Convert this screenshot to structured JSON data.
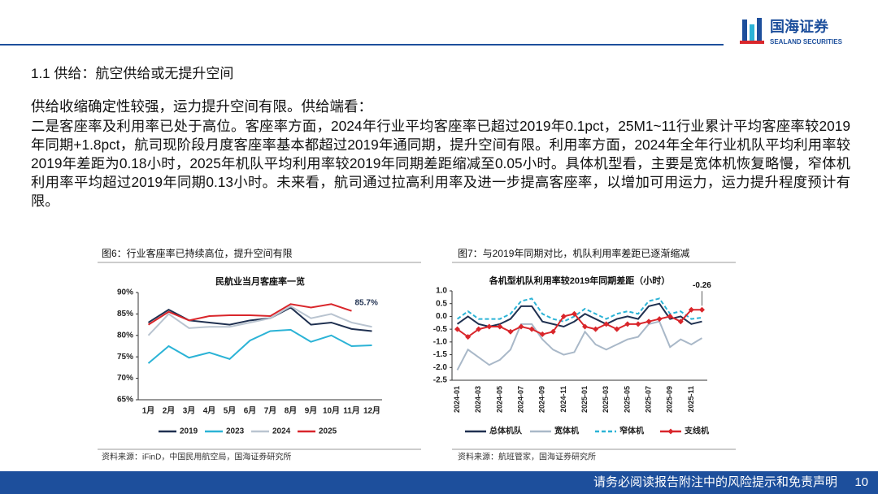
{
  "header": {
    "logo_text": "国海证券",
    "logo_subtext": "SEALAND SECURITIES"
  },
  "section_title": "1.1 供给：航空供给或无提升空间",
  "lead": "供给收缩确定性较强，运力提升空间有限。供给端看：",
  "paragraph": "二是客座率及利用率已处于高位。客座率方面，2024年行业平均客座率已超过2019年0.1pct，25M1~11行业累计平均客座率较2019年同期+1.8pct，航司现阶段月度客座率基本都超过2019年通同期，提升空间有限。利用率方面，2024年全年行业机队平均利用率较2019年差距为0.18小时，2025年机队平均利用率较2019年同期差距缩减至0.05小时。具体机型看，主要是宽体机恢复略慢，窄体机利用率平均超过2019年同期0.13小时。未来看，航司通过拉高利用率及进一步提高客座率，以增加可用运力，运力提升程度预计有限。",
  "footer": {
    "disclaimer": "请务必阅读报告附注中的风险提示和免责声明",
    "page_number": "10"
  },
  "chart_data": [
    {
      "type": "line",
      "caption": "图6：行业客座率已持续高位，提升空间有限",
      "title": "民航业当月客座率一览",
      "source": "资料来源：iFinD，中国民用航空局，国海证券研究所",
      "categories": [
        "1月",
        "2月",
        "3月",
        "4月",
        "5月",
        "6月",
        "7月",
        "8月",
        "9月",
        "10月",
        "11月",
        "12月"
      ],
      "ylim": [
        65,
        90
      ],
      "yticks": [
        {
          "value": 65,
          "label": "65%"
        },
        {
          "value": 70,
          "label": "70%"
        },
        {
          "value": 75,
          "label": "75%"
        },
        {
          "value": 80,
          "label": "80%"
        },
        {
          "value": 85,
          "label": "85%"
        },
        {
          "value": 90,
          "label": "90%"
        }
      ],
      "series": [
        {
          "name": "2019",
          "color": "#1f3050",
          "values": [
            83,
            86,
            83.5,
            83,
            82.5,
            83.5,
            84,
            86.5,
            82.5,
            83,
            81.5,
            81
          ]
        },
        {
          "name": "2023",
          "color": "#2bb3d6",
          "values": [
            73.5,
            77.5,
            74.8,
            76,
            74.5,
            78.8,
            81,
            81.3,
            78.5,
            80,
            77.5,
            77.7
          ]
        },
        {
          "name": "2024",
          "color": "#b9c4d0",
          "values": [
            80,
            85,
            81.7,
            82,
            82,
            83,
            84,
            86.8,
            84,
            85,
            83,
            82
          ]
        },
        {
          "name": "2025",
          "color": "#d9262b",
          "values": [
            82.5,
            85.5,
            83.5,
            84.5,
            84.7,
            84.7,
            84.5,
            87.3,
            86.5,
            87.3,
            85.7,
            null
          ],
          "value_labels": [
            null,
            null,
            null,
            null,
            null,
            null,
            null,
            null,
            null,
            null,
            "85.7%",
            null
          ]
        }
      ]
    },
    {
      "type": "line",
      "caption": "图7：与2019年同期对比，机队利用率差距已逐渐缩减",
      "title": "各机型机队利用率较2019年同期差距（小时）",
      "source": "资料来源：航班管家，国海证券研究所",
      "annotation": "-0.26",
      "categories": [
        "2024-01",
        null,
        "2024-03",
        null,
        "2024-05",
        null,
        "2024-07",
        null,
        "2024-09",
        null,
        "2024-11",
        null,
        "2025-01",
        null,
        "2025-03",
        null,
        "2025-05",
        null,
        "2025-07",
        null,
        "2025-09",
        null,
        "2025-11",
        null
      ],
      "ylim": [
        -2.5,
        1.0
      ],
      "yticks": [
        -2.5,
        {
          "value": -2,
          "label": "-2.0"
        },
        -1.5,
        {
          "value": -1,
          "label": "-1.0"
        },
        -0.5,
        {
          "value": 0,
          "label": "0.0"
        },
        0.5,
        {
          "value": 1,
          "label": "1.0"
        }
      ],
      "series": [
        {
          "name": "总体机队",
          "color": "#1f3050",
          "values": [
            -0.3,
            0.0,
            -0.3,
            -0.4,
            -0.3,
            -0.1,
            0.4,
            0.4,
            -0.2,
            -0.3,
            -0.4,
            -0.2,
            0.1,
            -0.1,
            -0.3,
            -0.1,
            0.0,
            -0.1,
            0.4,
            0.5,
            -0.1,
            0.0,
            -0.3,
            -0.2
          ]
        },
        {
          "name": "宽体机",
          "color": "#a9b8c8",
          "values": [
            -2.1,
            -1.3,
            -1.6,
            -1.9,
            -1.7,
            -1.3,
            -0.3,
            -0.3,
            -0.9,
            -1.3,
            -1.5,
            -1.4,
            -0.6,
            -1.1,
            -1.3,
            -1.1,
            -0.9,
            -0.8,
            -0.3,
            -0.2,
            -1.2,
            -0.9,
            -1.1,
            -0.85
          ]
        },
        {
          "name": "窄体机",
          "color": "#2bb3d6",
          "dash": true,
          "values": [
            -0.1,
            0.2,
            -0.1,
            -0.1,
            -0.1,
            0.1,
            0.6,
            0.7,
            0.1,
            -0.1,
            -0.2,
            0.0,
            0.3,
            0.1,
            -0.1,
            0.1,
            0.2,
            0.1,
            0.6,
            0.7,
            0.1,
            0.2,
            -0.1,
            -0.05
          ]
        },
        {
          "name": "支线机",
          "color": "#d9262b",
          "marker": "diamond",
          "values": [
            -0.5,
            -0.8,
            -0.5,
            -0.4,
            -0.4,
            -0.6,
            -0.4,
            -0.5,
            -0.7,
            -0.6,
            0.0,
            0.1,
            -0.4,
            -0.5,
            -0.3,
            -0.5,
            -0.3,
            -0.3,
            -0.2,
            -0.1,
            0.0,
            -0.2,
            0.26,
            0.26
          ]
        }
      ]
    }
  ]
}
